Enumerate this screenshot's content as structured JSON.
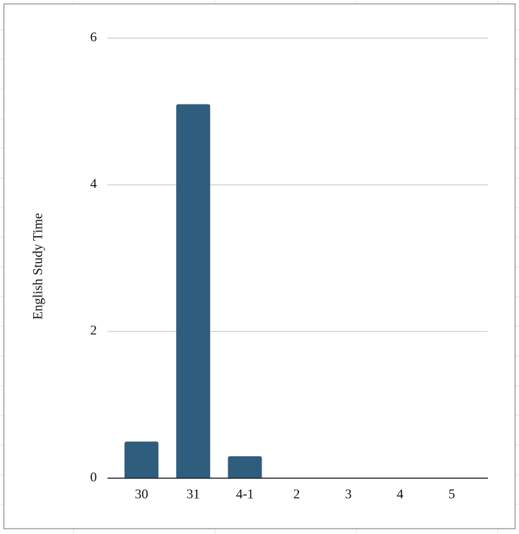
{
  "chart_data": {
    "type": "bar",
    "y_label": "English Study Time",
    "categories": [
      "30",
      "31",
      "4-1",
      "2",
      "3",
      "4",
      "5"
    ],
    "values": [
      0.5,
      5.1,
      0.3,
      0,
      0,
      0,
      0
    ],
    "color": "#2e5d7e",
    "ylim": [
      0,
      6
    ],
    "yticks": [
      0,
      2,
      4,
      6
    ],
    "grid": true
  }
}
